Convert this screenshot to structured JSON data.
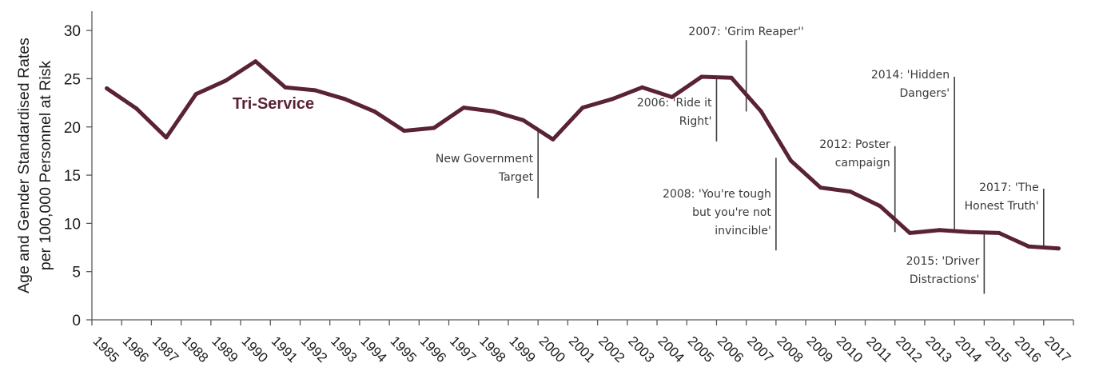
{
  "colors": {
    "series": "#5a2236",
    "axis": "#595959",
    "annotation_line": "#404040"
  },
  "chart_data": {
    "type": "line",
    "ylabel_lines": [
      "Age and Gender Standardised Rates",
      "per 100,000 Personnel at Risk"
    ],
    "ylim": [
      0,
      30
    ],
    "yticks": [
      "0",
      "5",
      "10",
      "15",
      "20",
      "25",
      "30"
    ],
    "x": [
      "1985",
      "1986",
      "1987",
      "1988",
      "1989",
      "1990",
      "1991",
      "1992",
      "1993",
      "1994",
      "1995",
      "1996",
      "1997",
      "1998",
      "1999",
      "2000",
      "2001",
      "2002",
      "2003",
      "2004",
      "2005",
      "2006",
      "2007",
      "2008",
      "2009",
      "2010",
      "2011",
      "2012",
      "2013",
      "2014",
      "2015",
      "2016",
      "2017"
    ],
    "series": [
      {
        "name": "Tri-Service",
        "values": [
          24.0,
          21.9,
          18.9,
          23.4,
          24.8,
          26.8,
          24.1,
          23.8,
          22.9,
          21.6,
          19.6,
          19.9,
          22.0,
          21.6,
          20.7,
          18.7,
          22.0,
          22.9,
          24.1,
          23.1,
          25.2,
          25.1,
          21.6,
          16.5,
          13.7,
          13.3,
          11.8,
          9.0,
          9.3,
          9.1,
          9.0,
          7.6,
          7.4
        ]
      }
    ],
    "annotations": [
      {
        "lines": [
          "New Government",
          "Target"
        ],
        "x": 1999.5,
        "y_top": 19.5,
        "y_bottom": 12.6,
        "text_side": "left",
        "text_y": 15.8
      },
      {
        "lines": [
          "2006: 'Ride it",
          "Right'"
        ],
        "x": 2005.5,
        "y_top": 25.0,
        "y_bottom": 18.5,
        "text_side": "left",
        "text_y": 21.6
      },
      {
        "lines": [
          "2007: 'Grim Reaper''"
        ],
        "x": 2006.5,
        "y_top": 29.0,
        "y_bottom": 21.6,
        "text_side": "above",
        "text_y": 30.0
      },
      {
        "lines": [
          "2008: 'You're tough",
          "but you're not",
          "invincible'"
        ],
        "x": 2007.5,
        "y_top": 16.8,
        "y_bottom": 7.2,
        "text_side": "left",
        "text_y": 11.2
      },
      {
        "lines": [
          "2012: Poster",
          "campaign"
        ],
        "x": 2011.5,
        "y_top": 18.0,
        "y_bottom": 9.1,
        "text_side": "left",
        "text_y": 17.3
      },
      {
        "lines": [
          "2014: 'Hidden",
          "Dangers'"
        ],
        "x": 2013.5,
        "y_top": 25.2,
        "y_bottom": 9.1,
        "text_side": "left",
        "text_y": 24.5
      },
      {
        "lines": [
          "2015: 'Driver",
          "Distractions'"
        ],
        "x": 2014.5,
        "y_top": 9.0,
        "y_bottom": 2.7,
        "text_side": "left",
        "text_y": 5.2
      },
      {
        "lines": [
          "2017: 'The",
          "Honest Truth'"
        ],
        "x": 2016.5,
        "y_top": 13.6,
        "y_bottom": 7.4,
        "text_side": "left",
        "text_y": 12.8
      }
    ]
  }
}
